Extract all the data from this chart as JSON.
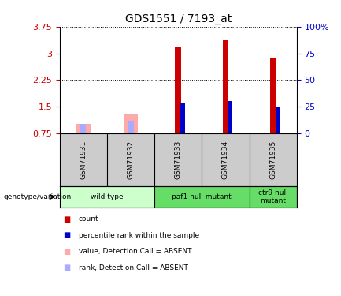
{
  "title": "GDS1551 / 7193_at",
  "samples": [
    "GSM71931",
    "GSM71932",
    "GSM71933",
    "GSM71934",
    "GSM71935"
  ],
  "ylim": [
    0.75,
    3.75
  ],
  "yticks": [
    0.75,
    1.5,
    2.25,
    3.0,
    3.75
  ],
  "ytick_labels": [
    "0.75",
    "1.5",
    "2.25",
    "3",
    "3.75"
  ],
  "y2lim": [
    0,
    100
  ],
  "y2ticks": [
    0,
    25,
    50,
    75,
    100
  ],
  "y2tick_labels": [
    "0",
    "25",
    "50",
    "75",
    "100%"
  ],
  "bar_baseline": 0.75,
  "red_bars": [
    null,
    null,
    3.18,
    3.37,
    2.88
  ],
  "blue_bars": [
    null,
    null,
    1.58,
    1.65,
    1.49
  ],
  "pink_bars": [
    1.02,
    1.27,
    null,
    null,
    null
  ],
  "lavender_bars": [
    1.02,
    1.1,
    null,
    null,
    null
  ],
  "red_color": "#cc0000",
  "blue_color": "#0000cc",
  "pink_color": "#ffaaaa",
  "lavender_color": "#aaaaff",
  "sample_label_bg": "#cccccc",
  "geno_color_light": "#ccffcc",
  "geno_color_dark": "#66dd66",
  "legend_items": [
    {
      "label": "count",
      "color": "#cc0000"
    },
    {
      "label": "percentile rank within the sample",
      "color": "#0000cc"
    },
    {
      "label": "value, Detection Call = ABSENT",
      "color": "#ffaaaa"
    },
    {
      "label": "rank, Detection Call = ABSENT",
      "color": "#aaaaff"
    }
  ],
  "genotype_label": "genotype/variation",
  "group_info": [
    {
      "label": "wild type",
      "start": 0,
      "end": 1,
      "color": "#ccffcc"
    },
    {
      "label": "paf1 null mutant",
      "start": 2,
      "end": 3,
      "color": "#66dd66"
    },
    {
      "label": "ctr9 null\nmutant",
      "start": 4,
      "end": 4,
      "color": "#66dd66"
    }
  ]
}
